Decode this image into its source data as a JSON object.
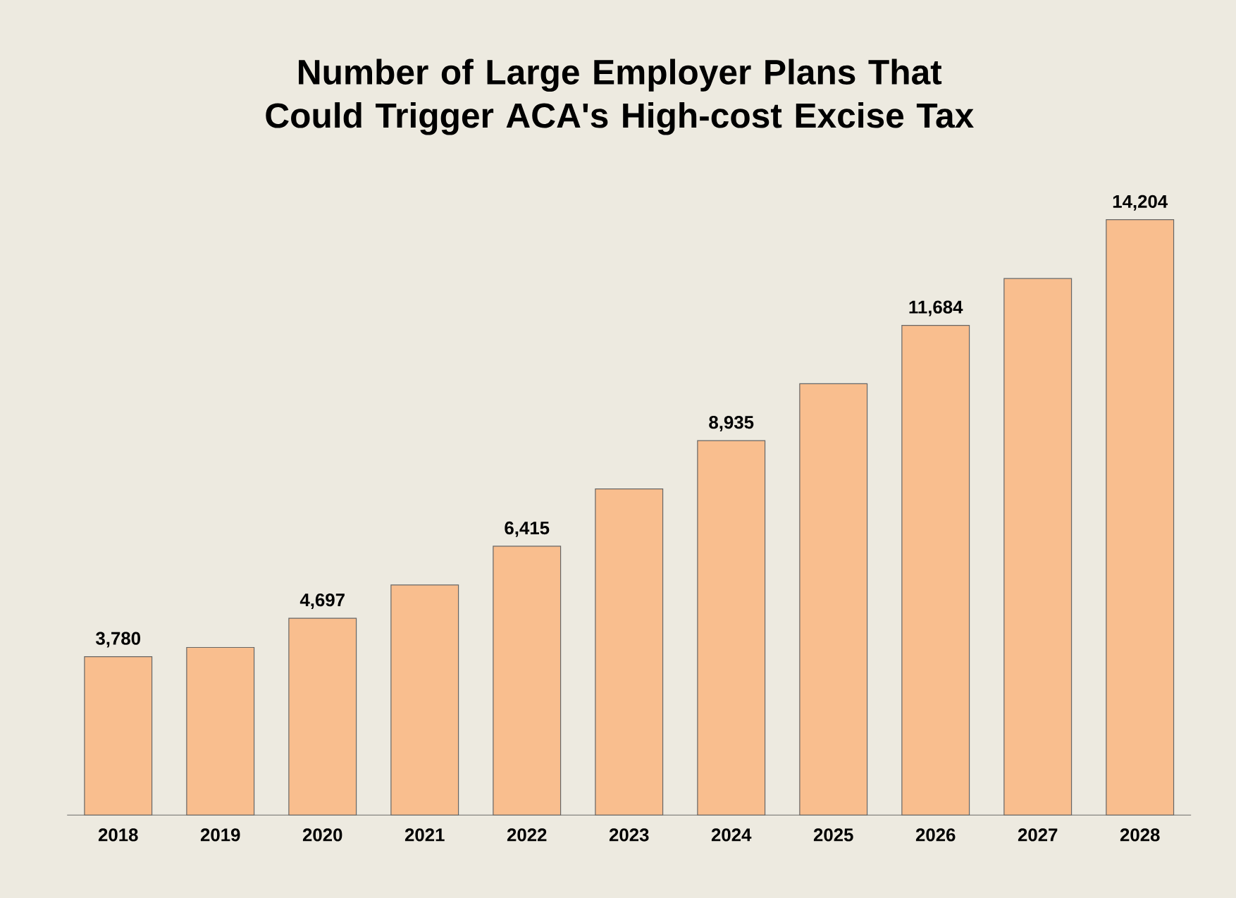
{
  "chart_data": {
    "type": "bar",
    "title": "Number of Large Employer Plans That Could Trigger ACA's High-cost Excise Tax",
    "categories": [
      "2018",
      "2019",
      "2020",
      "2021",
      "2022",
      "2023",
      "2024",
      "2025",
      "2026",
      "2027",
      "2028"
    ],
    "values": [
      3780,
      4000,
      4697,
      5490,
      6415,
      7780,
      8935,
      10290,
      11684,
      12800,
      14204
    ],
    "value_labels": [
      "3,780",
      null,
      "4,697",
      null,
      "6,415",
      null,
      "8,935",
      null,
      "11,684",
      null,
      "14,204"
    ],
    "color": "#f9be8e"
  }
}
